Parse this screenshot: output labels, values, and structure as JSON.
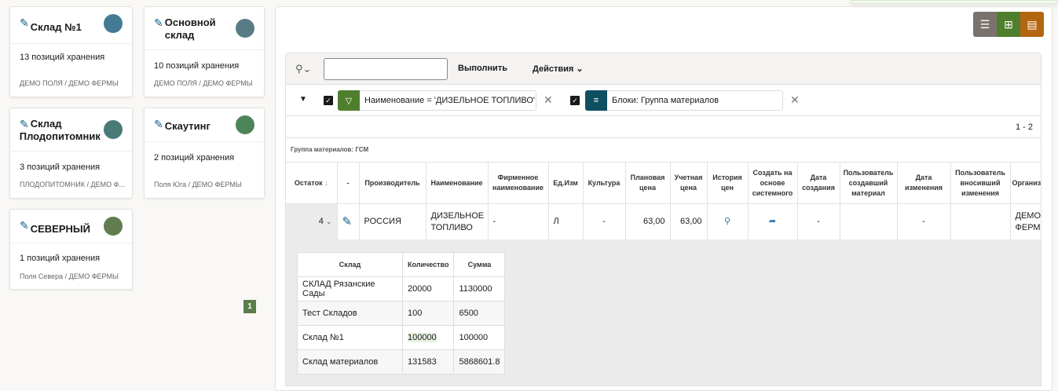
{
  "warehouses": [
    {
      "title": "Склад №1",
      "count": "13 позиций хранения",
      "org": "ДЕМО ПОЛЯ / ДЕМО ФЕРМЫ",
      "color": "#457a95"
    },
    {
      "title": "Основной склад",
      "count": "10 позиций хранения",
      "org": "ДЕМО ПОЛЯ / ДЕМО ФЕРМЫ",
      "color": "#587c85"
    },
    {
      "title": "Склад Плодопитомник",
      "count": "3 позиций хранения",
      "org": "ПЛОДОПИТОМНИК / ДЕМО Ф...",
      "color": "#4a7a78"
    },
    {
      "title": "Скаутинг",
      "count": "2 позиций хранения",
      "org": "Поля Юга / ДЕМО ФЕРМЫ",
      "color": "#4d8358"
    },
    {
      "title": "СЕВЕРНЫЙ",
      "count": "1 позиций хранения",
      "org": "Поля Севера / ДЕМО ФЕРМЫ",
      "color": "#617c4f"
    }
  ],
  "pagination": {
    "page": "1"
  },
  "toolbar": {
    "colors": [
      "#7a736d",
      "#4f7e2c",
      "#b3650f"
    ]
  },
  "search": {
    "value": "",
    "go": "Выполнить",
    "actions": "Действия"
  },
  "filters": [
    {
      "label": "Наименование = 'ДИЗЕЛЬНОЕ ТОПЛИВО'",
      "color": "#4f7e2c",
      "icon": "filter-icon"
    },
    {
      "label": "Блоки: Группа материалов",
      "color": "#0e4f62",
      "icon": "control-break-icon"
    }
  ],
  "range": "1 - 2",
  "group": "Группа материалов: ГСМ",
  "columns": [
    "Остаток",
    "-",
    "Производитель",
    "Наименование",
    "Фирменное наименование",
    "Ед.Изм",
    "Культура",
    "Плановая цена",
    "Учетная цена",
    "История цен",
    "Создать на основе системного",
    "Дата создания",
    "Пользователь создавший материал",
    "Дата изменения",
    "Пользователь вносивший изменения",
    "Организ"
  ],
  "row": {
    "ostatok": "4",
    "producer": "РОССИЯ",
    "name": "ДИЗЕЛЬНОЕ ТОПЛИВО",
    "brand": "-",
    "unit": "Л",
    "culture": "-",
    "plan": "63,00",
    "acc": "63,00",
    "created": "-",
    "changed": "-",
    "org": "ДЕМО ФЕРМЫ"
  },
  "detail": {
    "headers": [
      "Склад",
      "Количество",
      "Сумма"
    ],
    "rows": [
      [
        "СКЛАД Рязанские Сады",
        "20000",
        "1130000"
      ],
      [
        "Тест Складов",
        "100",
        "6500"
      ],
      [
        "Склад №1",
        "100000",
        "100000"
      ],
      [
        "Склад материалов",
        "131583",
        "5868601.8"
      ]
    ]
  }
}
